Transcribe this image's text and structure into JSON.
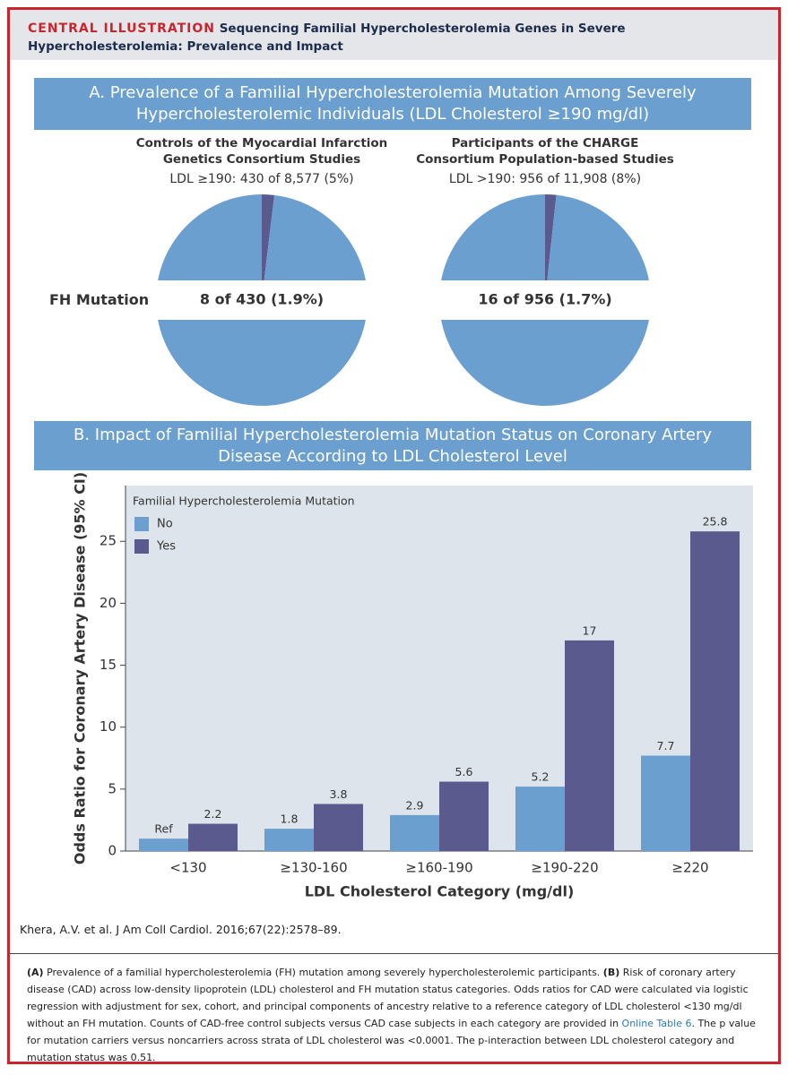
{
  "header": {
    "label": "CENTRAL ILLUSTRATION",
    "title": "Sequencing Familial Hypercholesterolemia Genes in Severe Hypercholesterolemia: Prevalence and Impact"
  },
  "panel_a": {
    "title": "A. Prevalence of a Familial Hypercholesterolemia Mutation Among Severely Hypercholesterolemic Individuals (LDL Cholesterol ≥190 mg/dl)",
    "row_label": "FH Mutation"
  },
  "panel_b": {
    "title": "B. Impact of Familial Hypercholesterolemia Mutation Status on Coronary Artery Disease According to LDL Cholesterol Level"
  },
  "chart_data": [
    {
      "type": "pie",
      "title": "Controls of the Myocardial Infarction Genetics Consortium Studies",
      "subtitle": "LDL ≥190: 430 of 8,577 (5%)",
      "values": [
        1.9,
        98.1
      ],
      "value_labels": [
        "8 of 430 (1.9%)",
        null
      ],
      "colors": [
        "#5b5a8f",
        "#6a9fd0"
      ]
    },
    {
      "type": "pie",
      "title": "Participants of the CHARGE Consortium Population-based Studies",
      "subtitle": "LDL >190: 956 of 11,908 (8%)",
      "values": [
        1.7,
        98.3
      ],
      "value_labels": [
        "16 of 956 (1.7%)",
        null
      ],
      "colors": [
        "#5b5a8f",
        "#6a9fd0"
      ]
    },
    {
      "type": "bar",
      "x_label": "LDL Cholesterol Category (mg/dl)",
      "y_label": "Odds Ratio for Coronary Artery Disease (95% CI)",
      "legend_title": "Familial Hypercholesterolemia Mutation",
      "legend": "upper left",
      "categories": [
        "<130",
        "≥130-160",
        "≥160-190",
        "≥190-220",
        "≥220"
      ],
      "series": [
        {
          "name": "No",
          "color": "#6a9fd0",
          "values": [
            1,
            1.8,
            2.9,
            5.2,
            7.7
          ],
          "value_labels": [
            "Ref",
            "1.8",
            "2.9",
            "5.2",
            "7.7"
          ]
        },
        {
          "name": "Yes",
          "color": "#5b5a8f",
          "values": [
            2.2,
            3.8,
            5.6,
            17,
            25.8
          ]
        }
      ],
      "ylim": [
        0,
        29.5
      ],
      "yticks": [
        0,
        5,
        10,
        15,
        20,
        25
      ]
    }
  ],
  "citation": "Khera, A.V. et al. J Am Coll Cardiol. 2016;67(22):2578–89.",
  "caption": {
    "a_label": "(A)",
    "a_text": " Prevalence of a familial hypercholesterolemia (FH) mutation among severely hypercholesterolemic participants. ",
    "b_label": "(B)",
    "b_text_1": " Risk of coronary artery disease (CAD) across low-density lipoprotein (LDL) cholesterol and FH mutation status categories. Odds ratios for CAD were calculated via logistic regression with adjustment for sex, cohort, and principal components of ancestry relative to a reference category of LDL cholesterol <130 mg/dl without an FH mutation. Counts of CAD-free control subjects versus CAD case subjects in each category are provided in ",
    "link": "Online Table 6",
    "b_text_2": ". The p value for mutation carriers versus noncarriers across strata of LDL cholesterol was <0.0001. The p-interaction between LDL cholesterol category and mutation status was 0.51."
  }
}
